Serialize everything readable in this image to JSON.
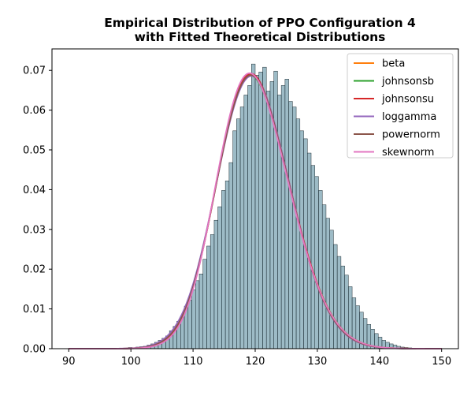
{
  "chart_data": {
    "type": "bar",
    "title": [
      "Empirical Distribution of PPO Configuration 4",
      "with Fitted Theoretical Distributions"
    ],
    "xlabel": "",
    "ylabel": "",
    "xlim": [
      87.3,
      152.7
    ],
    "ylim": [
      0,
      0.0754
    ],
    "x_ticks": [
      90,
      100,
      110,
      120,
      130,
      140,
      150
    ],
    "y_ticks": [
      0.0,
      0.01,
      0.02,
      0.03,
      0.04,
      0.05,
      0.06,
      0.07
    ],
    "y_tick_labels": [
      "0.00",
      "0.01",
      "0.02",
      "0.03",
      "0.04",
      "0.05",
      "0.06",
      "0.07"
    ],
    "histogram": {
      "bin_start": 90,
      "bin_width": 0.6,
      "bar_color": "#5b8ea0",
      "edge_color": "#1f2f36",
      "densities": [
        0.0001,
        0,
        0,
        0,
        0,
        0,
        0,
        0,
        0,
        0,
        0,
        0,
        0,
        0,
        0,
        0,
        0.0003,
        0.0002,
        0.0004,
        0.0005,
        0.0006,
        0.0009,
        0.0012,
        0.0016,
        0.0021,
        0.0026,
        0.0032,
        0.0045,
        0.0056,
        0.0069,
        0.0082,
        0.0107,
        0.0122,
        0.0148,
        0.0171,
        0.0188,
        0.0225,
        0.0258,
        0.0287,
        0.0323,
        0.0357,
        0.0398,
        0.0422,
        0.0468,
        0.0548,
        0.0578,
        0.0608,
        0.0638,
        0.0662,
        0.0716,
        0.0688,
        0.0696,
        0.0708,
        0.0648,
        0.0672,
        0.0698,
        0.0638,
        0.0662,
        0.0678,
        0.0622,
        0.0608,
        0.0578,
        0.0548,
        0.0528,
        0.0492,
        0.0461,
        0.0433,
        0.0398,
        0.0362,
        0.0328,
        0.0298,
        0.0262,
        0.0232,
        0.0208,
        0.0185,
        0.0156,
        0.0128,
        0.0108,
        0.0092,
        0.0076,
        0.0061,
        0.0049,
        0.0038,
        0.0029,
        0.0021,
        0.0016,
        0.0012,
        0.0009,
        0.0006,
        0.0004,
        0.0003,
        0.0002,
        0.0001,
        0.0001,
        0,
        0,
        0,
        0,
        0,
        0
      ]
    },
    "series": [
      {
        "name": "beta",
        "color": "#ff7f0e",
        "peak_x": 119.2,
        "peak_y": 0.0689,
        "sd": 5.8,
        "skew": 0.25
      },
      {
        "name": "johnsonsb",
        "color": "#2ca02c",
        "peak_x": 119.2,
        "peak_y": 0.0688,
        "sd": 5.8,
        "skew": 0.25
      },
      {
        "name": "johnsonsu",
        "color": "#d62728",
        "peak_x": 119.3,
        "peak_y": 0.0692,
        "sd": 5.8,
        "skew": 0.22
      },
      {
        "name": "loggamma",
        "color": "#9467bd",
        "peak_x": 119.4,
        "peak_y": 0.0686,
        "sd": 5.85,
        "skew": 0.15
      },
      {
        "name": "powernorm",
        "color": "#8c564b",
        "peak_x": 119.3,
        "peak_y": 0.0688,
        "sd": 5.8,
        "skew": 0.2
      },
      {
        "name": "skewnorm",
        "color": "#e377c2",
        "peak_x": 119.1,
        "peak_y": 0.0693,
        "sd": 5.75,
        "skew": 0.28
      }
    ],
    "curve_x_range": [
      90,
      150
    ],
    "legend_position": "top-right",
    "grid": false
  }
}
